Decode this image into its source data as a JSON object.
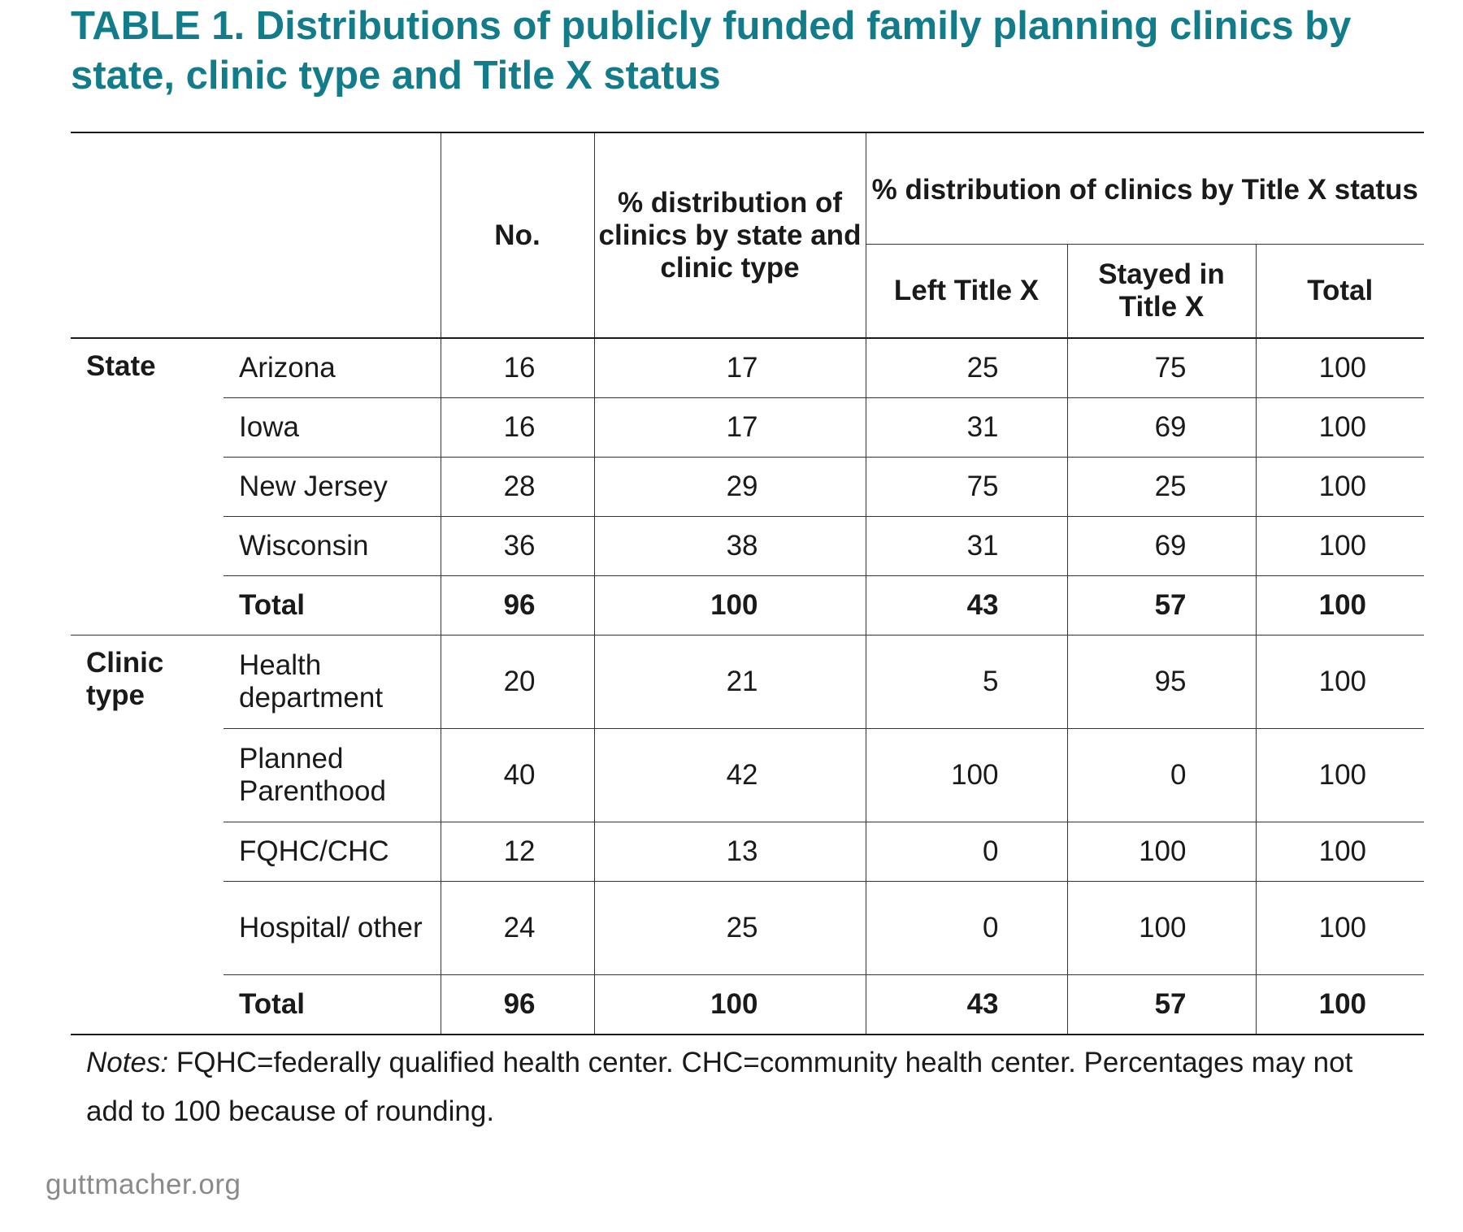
{
  "title": "TABLE 1. Distributions of publicly funded family planning clinics by state, clinic type and Title X status",
  "headers": {
    "no": "No.",
    "pct_state_type": "% distribution of clinics by state and clinic type",
    "pct_title_x": "% distribution of clinics by Title X status",
    "left_title_x": "Left Title X",
    "stayed_title_x": "Stayed in Title X",
    "total": "Total"
  },
  "groups": [
    {
      "label": "State",
      "rows": [
        {
          "label": "Arizona",
          "no": "16",
          "pct": "17",
          "left": "25",
          "stayed": "75",
          "total": "100"
        },
        {
          "label": "Iowa",
          "no": "16",
          "pct": "17",
          "left": "31",
          "stayed": "69",
          "total": "100"
        },
        {
          "label": "New Jersey",
          "no": "28",
          "pct": "29",
          "left": "75",
          "stayed": "25",
          "total": "100"
        },
        {
          "label": "Wisconsin",
          "no": "36",
          "pct": "38",
          "left": "31",
          "stayed": "69",
          "total": "100"
        },
        {
          "label": "Total",
          "no": "96",
          "pct": "100",
          "left": "43",
          "stayed": "57",
          "total": "100"
        }
      ]
    },
    {
      "label": "Clinic type",
      "rows": [
        {
          "label": "Health department",
          "no": "20",
          "pct": "21",
          "left": "5",
          "stayed": "95",
          "total": "100"
        },
        {
          "label": "Planned Parenthood",
          "no": "40",
          "pct": "42",
          "left": "100",
          "stayed": "0",
          "total": "100"
        },
        {
          "label": "FQHC/CHC",
          "no": "12",
          "pct": "13",
          "left": "0",
          "stayed": "100",
          "total": "100"
        },
        {
          "label": "Hospital/ other",
          "no": "24",
          "pct": "25",
          "left": "0",
          "stayed": "100",
          "total": "100"
        },
        {
          "label": "Total",
          "no": "96",
          "pct": "100",
          "left": "43",
          "stayed": "57",
          "total": "100"
        }
      ]
    }
  ],
  "notes": {
    "label": "Notes:",
    "text": " FQHC=federally qualified health center. CHC=community health center. Percentages may not add to 100 because of rounding."
  },
  "source": "guttmacher.org",
  "colors": {
    "title": "#127c8a",
    "text": "#1a1a1a",
    "source": "#8a8a8a"
  }
}
